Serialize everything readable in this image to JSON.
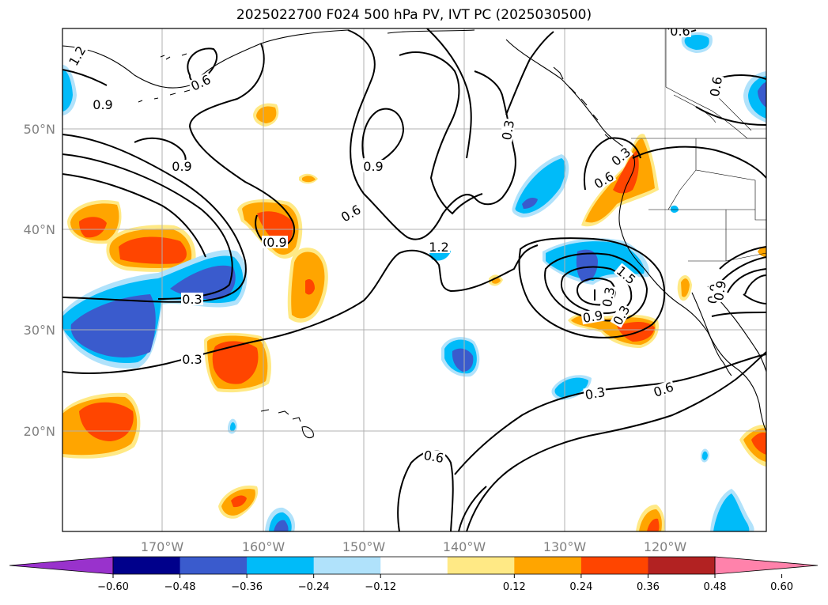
{
  "title": "2025022700 F024 500 hPa PV, IVT PC (2025030500)",
  "map": {
    "lat_labels": [
      "50°N",
      "40°N",
      "30°N",
      "20°N"
    ],
    "lon_labels": [
      "170°W",
      "160°W",
      "150°W",
      "140°W",
      "130°W",
      "120°W"
    ],
    "gridlines": true
  },
  "colorbar": {
    "ticks": [
      "−0.60",
      "−0.48",
      "−0.36",
      "−0.24",
      "−0.12",
      "0.12",
      "0.24",
      "0.36",
      "0.48",
      "0.60"
    ],
    "colors": [
      "#9932cc",
      "#00008b",
      "#3a5bcd",
      "#00bbf9",
      "#b0e2fb",
      "#ffffff",
      "#ffe985",
      "#ffa500",
      "#ff4500",
      "#b22222",
      "#ff82ab"
    ]
  },
  "contour_labels": [
    "1.2",
    "0.6",
    "0.9",
    "0.9",
    "0.9",
    "0.9",
    "0.3",
    "0.6",
    "0.6",
    "0.9",
    "0.3",
    "0.3",
    "0.3",
    "0.6",
    "1.2",
    "1.5",
    "0.9",
    "0.3",
    "0.3",
    "0.6",
    "0.6",
    "0.3",
    "0.9",
    "0.6",
    "0.9"
  ]
}
